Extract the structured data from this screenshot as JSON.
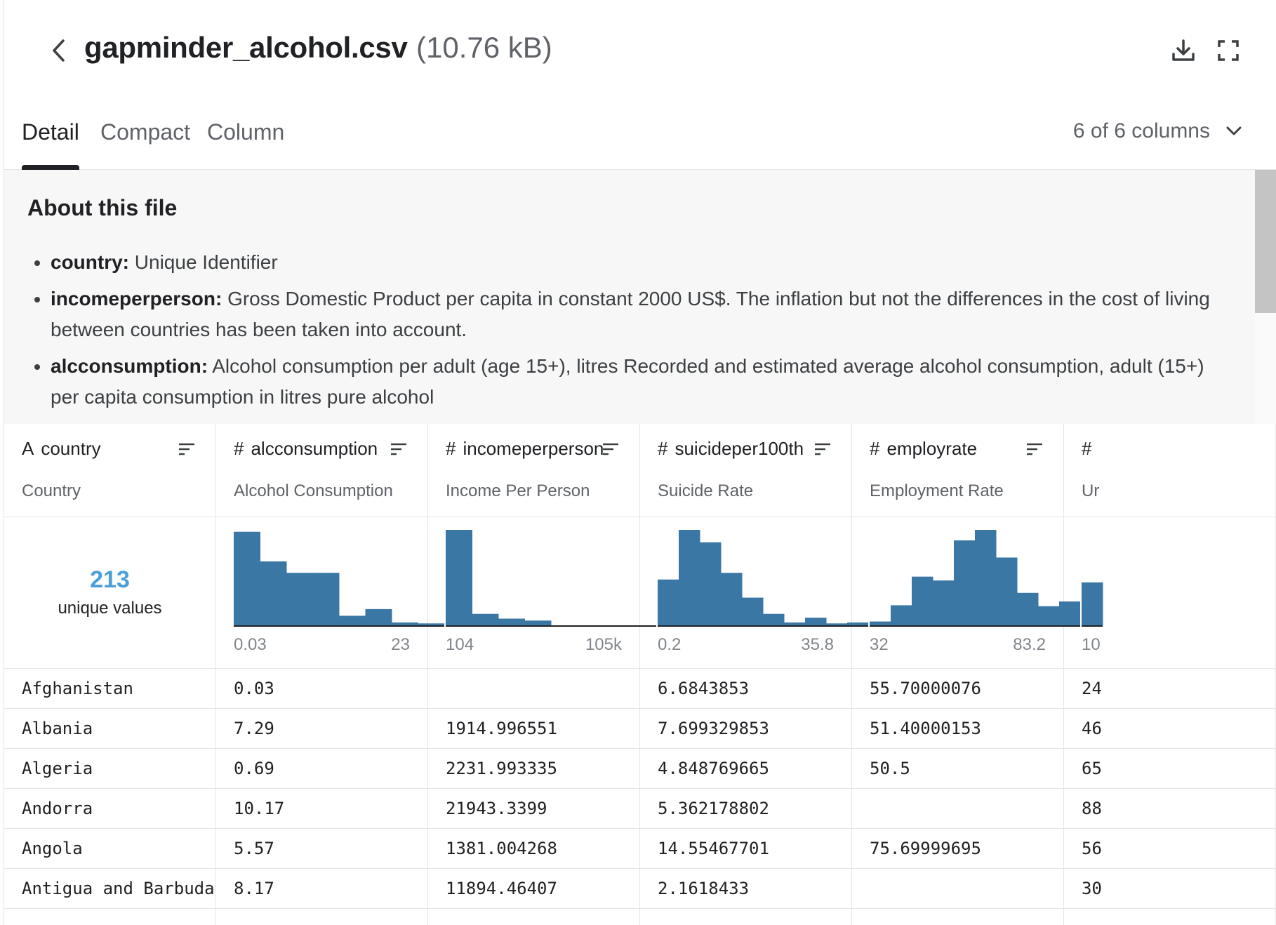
{
  "header": {
    "filename": "gapminder_alcohol.csv",
    "filesize": "(10.76 kB)"
  },
  "tabs": [
    {
      "label": "Detail",
      "active": true
    },
    {
      "label": "Compact",
      "active": false
    },
    {
      "label": "Column",
      "active": false
    }
  ],
  "column_selector": "6 of 6 columns",
  "about": {
    "title": "About this file",
    "items": [
      {
        "term": "country:",
        "text": "Unique Identifier"
      },
      {
        "term": "incomeperperson:",
        "text": "Gross Domestic Product per capita in constant 2000 US$. The inflation but not the differences in the cost of living between countries has been taken into account."
      },
      {
        "term": "alcconsumption:",
        "text": "Alcohol consumption per adult (age 15+), litres Recorded and estimated average alcohol consumption, adult (15+) per capita consumption in litres pure alcohol"
      }
    ]
  },
  "columns": [
    {
      "name": "country",
      "type": "string",
      "type_icon": "A",
      "description": "Country",
      "unique_count": "213",
      "unique_label": "unique values"
    },
    {
      "name": "alcconsumption",
      "type": "numeric",
      "type_icon": "#",
      "description": "Alcohol Consumption",
      "min": "0.03",
      "max": "23",
      "histogram": [
        0.98,
        0.67,
        0.55,
        0.55,
        0.1,
        0.17,
        0.03,
        0.02
      ]
    },
    {
      "name": "incomeperperson",
      "type": "numeric",
      "type_icon": "#",
      "description": "Income Per Person",
      "min": "104",
      "max": "105k",
      "histogram": [
        1.0,
        0.12,
        0.07,
        0.05,
        0.0,
        0.0,
        0.0,
        0.0
      ]
    },
    {
      "name": "suicideper100th",
      "type": "numeric",
      "type_icon": "#",
      "description": "Suicide Rate",
      "min": "0.2",
      "max": "35.8",
      "histogram": [
        0.48,
        1.0,
        0.87,
        0.55,
        0.29,
        0.12,
        0.03,
        0.08,
        0.02,
        0.03
      ]
    },
    {
      "name": "employrate",
      "type": "numeric",
      "type_icon": "#",
      "description": "Employment Rate",
      "min": "32",
      "max": "83.2",
      "histogram": [
        0.04,
        0.21,
        0.51,
        0.47,
        0.89,
        1.0,
        0.71,
        0.34,
        0.2,
        0.25
      ]
    },
    {
      "name": "",
      "type": "numeric",
      "type_icon": "#",
      "description": "Ur",
      "min": "10",
      "max": "",
      "histogram": [
        0.45
      ]
    }
  ],
  "rows": [
    [
      "Afghanistan",
      "0.03",
      "",
      "6.6843853",
      "55.70000076",
      "24"
    ],
    [
      "Albania",
      "7.29",
      "1914.996551",
      "7.699329853",
      "51.40000153",
      "46"
    ],
    [
      "Algeria",
      "0.69",
      "2231.993335",
      "4.848769665",
      "50.5",
      "65"
    ],
    [
      "Andorra",
      "10.17",
      "21943.3399",
      "5.362178802",
      "",
      "88"
    ],
    [
      "Angola",
      "5.57",
      "1381.004268",
      "14.55467701",
      "75.69999695",
      "56"
    ],
    [
      "Antigua and Barbuda",
      "8.17",
      "11894.46407",
      "2.1618433",
      "",
      "30"
    ]
  ],
  "colors": {
    "histogram_bar": "#3a77a5",
    "unique_count": "#4a9fd8"
  }
}
